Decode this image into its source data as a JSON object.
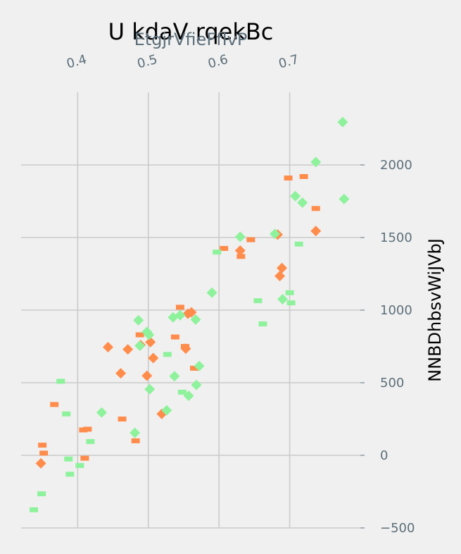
{
  "chart_data": {
    "type": "scatter",
    "title": "U kdaV rqekBc",
    "xlabel": "EtgjrVfieFfIvP",
    "ylabel": "NNBDhbsvWiJVbJ",
    "x_ticks": [
      "0.4",
      "0.5",
      "0.6",
      "0.7"
    ],
    "x_tick_values": [
      0.4,
      0.5,
      0.6,
      0.7
    ],
    "y_ticks": [
      "−500",
      "0",
      "500",
      "1000",
      "1500",
      "2000"
    ],
    "y_tick_values": [
      -500,
      0,
      500,
      1000,
      1500,
      2000
    ],
    "xlim": [
      0.32,
      0.8
    ],
    "ylim": [
      -500,
      2500
    ],
    "x_axis_position": "top",
    "y_axis_position": "right",
    "grid": true,
    "series": [
      {
        "marker": "diamond",
        "color": "#ff8c4b",
        "points": [
          [
            0.348,
            -55
          ],
          [
            0.443,
            745
          ],
          [
            0.461,
            565
          ],
          [
            0.471,
            730
          ],
          [
            0.489,
            760
          ],
          [
            0.498,
            548
          ],
          [
            0.503,
            780
          ],
          [
            0.507,
            670
          ],
          [
            0.519,
            285
          ],
          [
            0.553,
            735
          ],
          [
            0.556,
            975
          ],
          [
            0.561,
            985
          ],
          [
            0.63,
            1410
          ],
          [
            0.683,
            1520
          ],
          [
            0.686,
            1235
          ],
          [
            0.689,
            1290
          ],
          [
            0.737,
            1545
          ]
        ]
      },
      {
        "marker": "dash",
        "color": "#ff8c4b",
        "points": [
          [
            0.35,
            70
          ],
          [
            0.352,
            15
          ],
          [
            0.367,
            350
          ],
          [
            0.408,
            175
          ],
          [
            0.41,
            -20
          ],
          [
            0.414,
            180
          ],
          [
            0.463,
            250
          ],
          [
            0.482,
            100
          ],
          [
            0.488,
            830
          ],
          [
            0.538,
            815
          ],
          [
            0.545,
            1020
          ],
          [
            0.552,
            750
          ],
          [
            0.565,
            600
          ],
          [
            0.607,
            1425
          ],
          [
            0.631,
            1370
          ],
          [
            0.645,
            1485
          ],
          [
            0.698,
            1910
          ],
          [
            0.72,
            1920
          ],
          [
            0.737,
            1700
          ]
        ]
      },
      {
        "marker": "diamond",
        "color": "#8ef29c",
        "points": [
          [
            0.434,
            295
          ],
          [
            0.481,
            155
          ],
          [
            0.486,
            930
          ],
          [
            0.488,
            755
          ],
          [
            0.498,
            850
          ],
          [
            0.501,
            830
          ],
          [
            0.502,
            455
          ],
          [
            0.526,
            310
          ],
          [
            0.535,
            950
          ],
          [
            0.537,
            545
          ],
          [
            0.545,
            965
          ],
          [
            0.557,
            410
          ],
          [
            0.567,
            935
          ],
          [
            0.568,
            485
          ],
          [
            0.572,
            615
          ],
          [
            0.59,
            1120
          ],
          [
            0.63,
            1505
          ],
          [
            0.679,
            1525
          ],
          [
            0.69,
            1075
          ],
          [
            0.708,
            1785
          ],
          [
            0.718,
            1740
          ],
          [
            0.737,
            2020
          ],
          [
            0.775,
            2295
          ],
          [
            0.777,
            1765
          ]
        ]
      },
      {
        "marker": "dash",
        "color": "#8ef29c",
        "points": [
          [
            0.338,
            -375
          ],
          [
            0.349,
            -265
          ],
          [
            0.376,
            510
          ],
          [
            0.384,
            285
          ],
          [
            0.387,
            -25
          ],
          [
            0.389,
            -130
          ],
          [
            0.403,
            -70
          ],
          [
            0.418,
            95
          ],
          [
            0.527,
            695
          ],
          [
            0.548,
            435
          ],
          [
            0.597,
            1400
          ],
          [
            0.655,
            1065
          ],
          [
            0.662,
            905
          ],
          [
            0.7,
            1120
          ],
          [
            0.702,
            1050
          ],
          [
            0.713,
            1455
          ]
        ]
      }
    ]
  }
}
